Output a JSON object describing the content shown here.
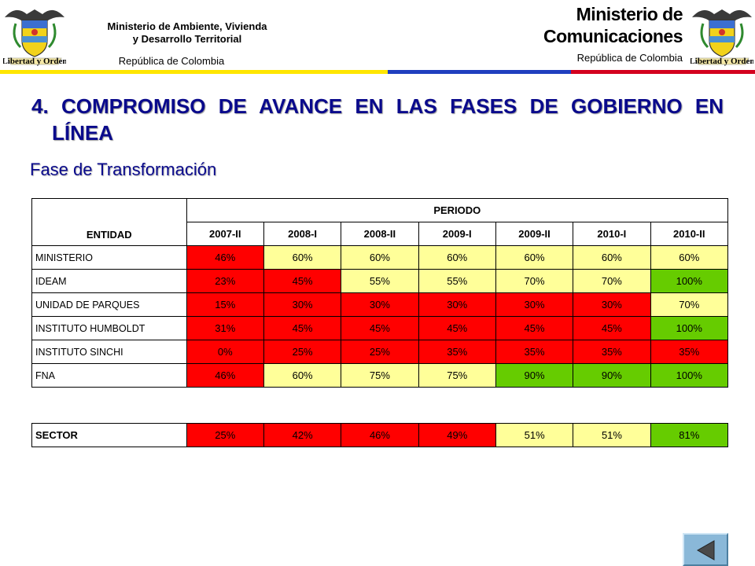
{
  "header": {
    "left_crest_motto": "Libertad y Orden",
    "left_title_line1": "Ministerio de Ambiente, Vivienda",
    "left_title_line2": "y Desarrollo Territorial",
    "left_subtitle": "República de Colombia",
    "right_title_line1": "Ministerio de",
    "right_title_line2": "Comunicaciones",
    "right_subtitle": "República de Colombia",
    "right_crest_motto": "Libertad y Orden"
  },
  "colors": {
    "title_blue": "#0a0a8c",
    "red": "#ff0000",
    "yellow": "#ffff99",
    "green": "#66cc00",
    "stripe_yellow": "#ffe600",
    "stripe_blue": "#1f3fbf",
    "stripe_red": "#d4001e"
  },
  "slide": {
    "title_line1": "4. COMPROMISO DE AVANCE EN LAS FASES DE GOBIERNO EN",
    "title_line2": "LÍNEA",
    "subtitle": "Fase de Transformación"
  },
  "table": {
    "entity_header": "ENTIDAD",
    "period_header": "PERIODO",
    "periods": [
      "2007-II",
      "2008-I",
      "2008-II",
      "2009-I",
      "2009-II",
      "2010-I",
      "2010-II"
    ],
    "rows": [
      {
        "name": "MINISTERIO",
        "values": [
          "46%",
          "60%",
          "60%",
          "60%",
          "60%",
          "60%",
          "60%"
        ],
        "colors": [
          "red",
          "yellow",
          "yellow",
          "yellow",
          "yellow",
          "yellow",
          "yellow"
        ]
      },
      {
        "name": "IDEAM",
        "values": [
          "23%",
          "45%",
          "55%",
          "55%",
          "70%",
          "70%",
          "100%"
        ],
        "colors": [
          "red",
          "red",
          "yellow",
          "yellow",
          "yellow",
          "yellow",
          "green"
        ]
      },
      {
        "name": "UNIDAD DE PARQUES",
        "values": [
          "15%",
          "30%",
          "30%",
          "30%",
          "30%",
          "30%",
          "70%"
        ],
        "colors": [
          "red",
          "red",
          "red",
          "red",
          "red",
          "red",
          "yellow"
        ]
      },
      {
        "name": "INSTITUTO HUMBOLDT",
        "values": [
          "31%",
          "45%",
          "45%",
          "45%",
          "45%",
          "45%",
          "100%"
        ],
        "colors": [
          "red",
          "red",
          "red",
          "red",
          "red",
          "red",
          "green"
        ]
      },
      {
        "name": "INSTITUTO SINCHI",
        "values": [
          "0%",
          "25%",
          "25%",
          "35%",
          "35%",
          "35%",
          "35%"
        ],
        "colors": [
          "red",
          "red",
          "red",
          "red",
          "red",
          "red",
          "red"
        ]
      },
      {
        "name": "FNA",
        "values": [
          "46%",
          "60%",
          "75%",
          "75%",
          "90%",
          "90%",
          "100%"
        ],
        "colors": [
          "red",
          "yellow",
          "yellow",
          "yellow",
          "green",
          "green",
          "green"
        ]
      }
    ],
    "sector": {
      "name": "SECTOR",
      "values": [
        "25%",
        "42%",
        "46%",
        "49%",
        "51%",
        "51%",
        "81%"
      ],
      "colors": [
        "red",
        "red",
        "red",
        "red",
        "yellow",
        "yellow",
        "green"
      ]
    }
  },
  "nav": {
    "back_icon": "triangle-left-icon"
  }
}
